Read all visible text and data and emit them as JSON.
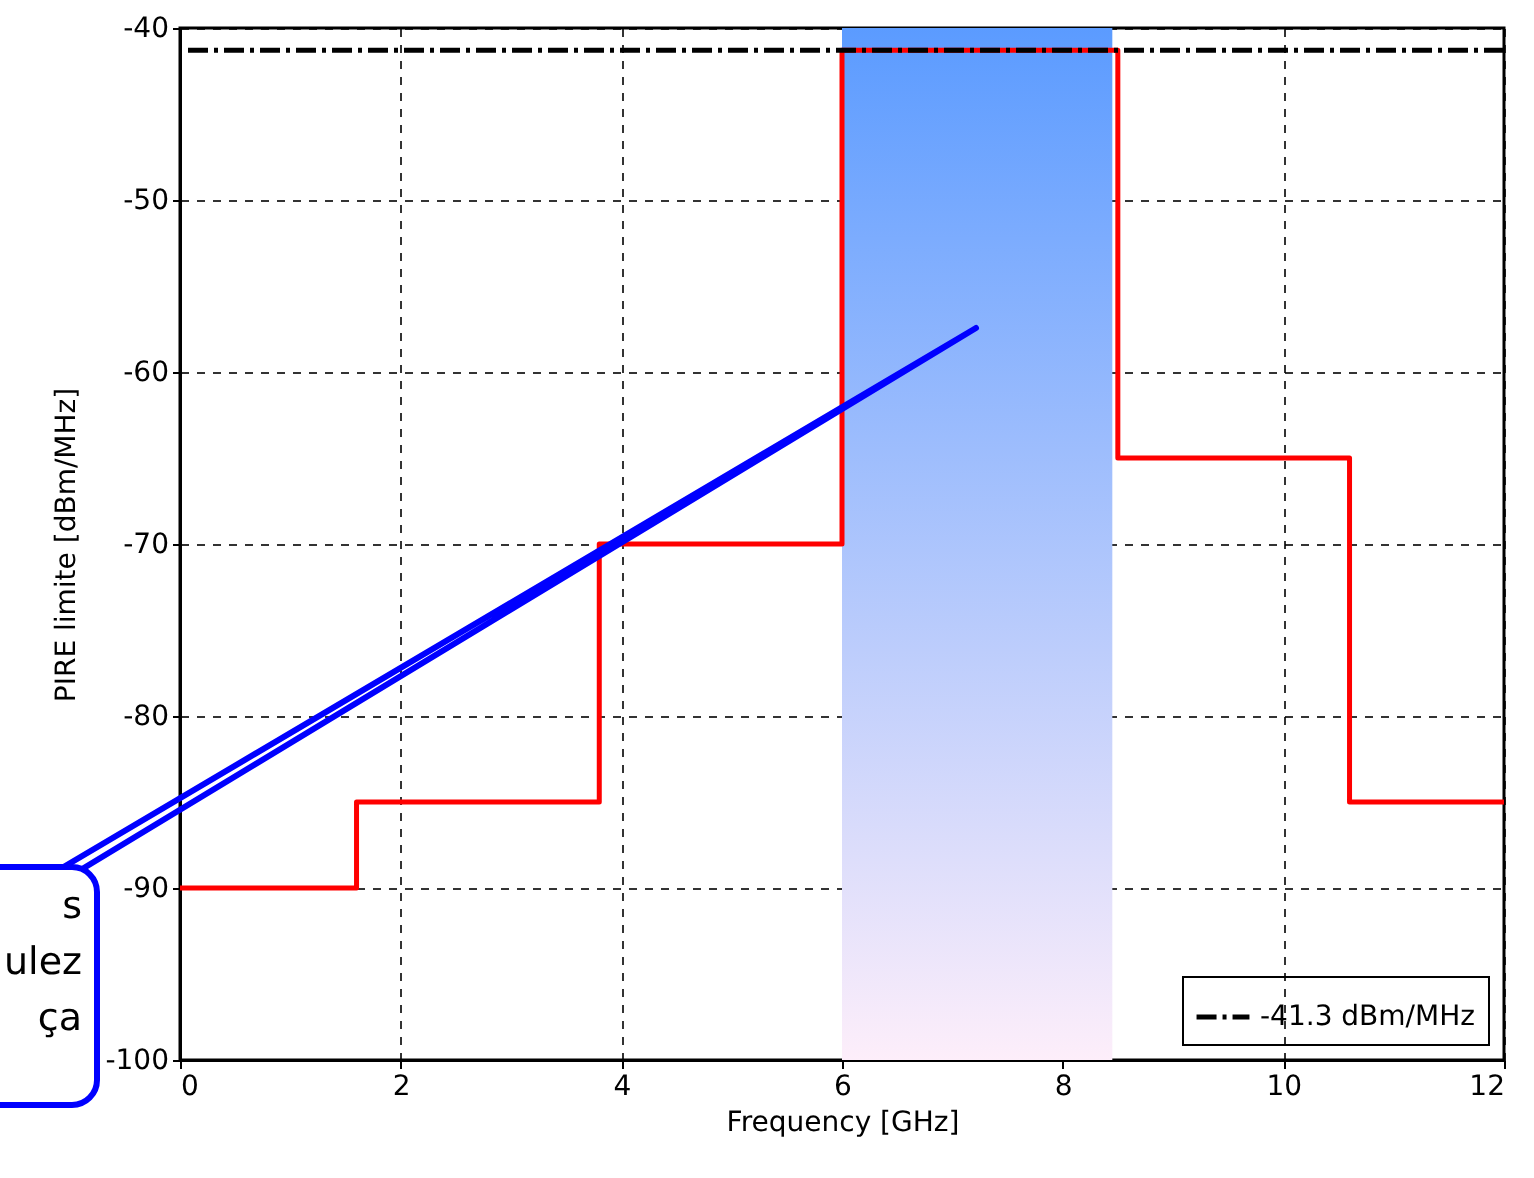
{
  "chart_data": {
    "type": "step",
    "xlabel": "Frequency [GHz]",
    "ylabel": "PIRE limite [dBm/MHz]",
    "xlim": [
      0,
      12
    ],
    "xticks": [
      0,
      2,
      4,
      6,
      8,
      10,
      12
    ],
    "ylim": [
      -100,
      -40
    ],
    "yticks": [
      -100,
      -90,
      -80,
      -70,
      -60,
      -50,
      -40
    ],
    "grid": true,
    "legend": "bottom right",
    "series": [
      {
        "color": "#ff0000",
        "x": [
          0,
          1.6,
          3.8,
          6,
          8.5,
          10.6,
          12
        ],
        "values": [
          -90,
          -85,
          -70,
          -41.3,
          -65,
          -85,
          -85
        ]
      }
    ],
    "ref_lines": [
      {
        "axis": "y",
        "value": -41.3,
        "label": "-41.3 dBm/MHz",
        "color": "#000000",
        "line_style": "dashdot"
      }
    ],
    "bands": [
      {
        "axis": "x",
        "from": 6,
        "to": 8.45,
        "color": "#5b9bff"
      }
    ],
    "annotations": [
      "s\nulez\nça"
    ]
  }
}
